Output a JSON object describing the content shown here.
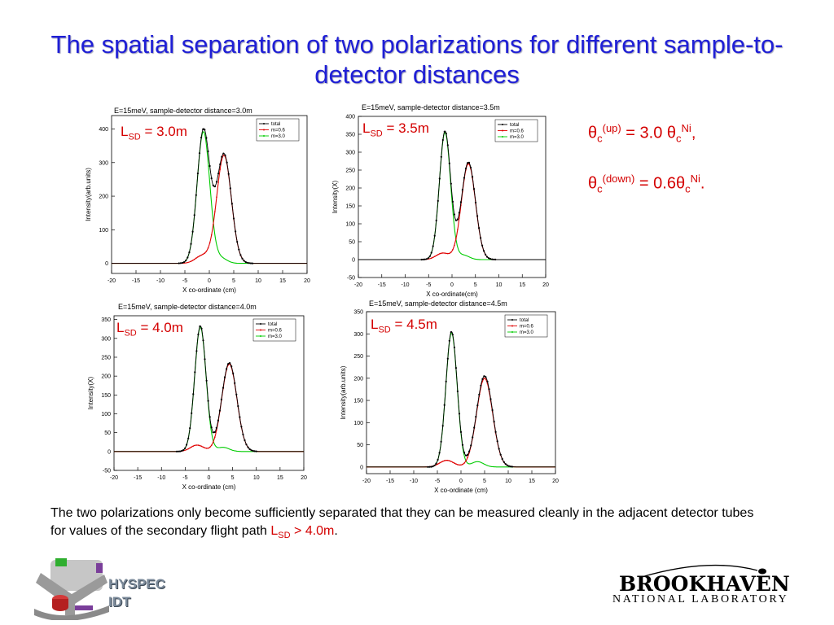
{
  "slide": {
    "title": "The spatial separation of two polarizations for different sample-to-detector distances",
    "theta_up": {
      "prefix": "θ",
      "sub1": "c",
      "sup1": "(up)",
      "mid": " = 3.0 θ",
      "sub2": "c",
      "sup2": "Ni",
      "end": ","
    },
    "theta_down": {
      "prefix": "θ",
      "sub1": "c",
      "sup1": "(down)",
      "mid": " = 0.6θ",
      "sub2": "c",
      "sup2": "Ni",
      "end": "."
    },
    "caption": {
      "text": "The two polarizations only become sufficiently separated that they can be measured cleanly in the adjacent detector tubes for values of the secondary flight path ",
      "lsd_main": "L",
      "lsd_sub": "SD",
      "lsd_rest": " > 4.0m",
      "end": "."
    },
    "logos": {
      "hyspec_line1": "HYSPEC",
      "hyspec_line2": "IDT",
      "bnl_word": "BROOKHAVEN",
      "bnl_sub": "NATIONAL LABORATORY"
    }
  },
  "colors": {
    "title": "#1f1fd6",
    "label": "#d40000",
    "total": "#000000",
    "m06": "#e00000",
    "m30": "#00cc00"
  },
  "chart_data": [
    {
      "type": "line",
      "title": "E=15meV, sample-detector distance=3.0m",
      "lsd": {
        "main": "L",
        "sub": "SD",
        "rest": " = 3.0m"
      },
      "xlabel": "X co-ordinate (cm)",
      "ylabel": "Intensity(arb.units)",
      "xlim": [
        -20,
        20
      ],
      "ylim": [
        -30,
        440
      ],
      "xticks": [
        -20,
        -15,
        -10,
        -5,
        0,
        5,
        10,
        15,
        20
      ],
      "yticks": [
        0,
        100,
        200,
        300,
        400
      ],
      "legend_position": "top-right",
      "series": [
        {
          "name": "total",
          "color": "#000000",
          "components": [
            [
              -1.2,
              1.3,
              395
            ],
            [
              3.0,
              1.5,
              325
            ]
          ]
        },
        {
          "name": "m=0.6",
          "color": "#e00000",
          "components": [
            [
              -1.5,
              1.4,
              22
            ],
            [
              3.0,
              1.5,
              322
            ]
          ]
        },
        {
          "name": "m=3.0",
          "color": "#00cc00",
          "components": [
            [
              -1.2,
              1.3,
              392
            ],
            [
              2.5,
              1.2,
              14
            ]
          ]
        }
      ]
    },
    {
      "type": "line",
      "title": "E=15meV, sample-detector distance=3.5m",
      "lsd": {
        "main": "L",
        "sub": "SD",
        "rest": " = 3.5m"
      },
      "xlabel": "X co-ordinate(cm)",
      "ylabel": "Intensity(X)",
      "xlim": [
        -20,
        20
      ],
      "ylim": [
        -50,
        400
      ],
      "xticks": [
        -20,
        -15,
        -10,
        -5,
        0,
        5,
        10,
        15,
        20
      ],
      "yticks": [
        -50,
        0,
        50,
        100,
        150,
        200,
        250,
        300,
        350,
        400
      ],
      "legend_position": "top-right",
      "series": [
        {
          "name": "total",
          "color": "#000000",
          "components": [
            [
              -1.5,
              1.2,
              358
            ],
            [
              3.5,
              1.5,
              272
            ]
          ]
        },
        {
          "name": "m=0.6",
          "color": "#e00000",
          "components": [
            [
              -2.0,
              1.4,
              18
            ],
            [
              3.5,
              1.5,
              268
            ]
          ]
        },
        {
          "name": "m=3.0",
          "color": "#00cc00",
          "components": [
            [
              -1.5,
              1.2,
              355
            ],
            [
              2.5,
              1.2,
              12
            ]
          ]
        }
      ]
    },
    {
      "type": "line",
      "title": "E=15meV, sample-detector distance=4.0m",
      "lsd": {
        "main": "L",
        "sub": "SD",
        "rest": " = 4.0m"
      },
      "xlabel": "X co-ordinate (cm)",
      "ylabel": "Intensity(X)",
      "xlim": [
        -20,
        20
      ],
      "ylim": [
        -50,
        360
      ],
      "xticks": [
        -20,
        -15,
        -10,
        -5,
        0,
        5,
        10,
        15,
        20
      ],
      "yticks": [
        -50,
        0,
        50,
        100,
        150,
        200,
        250,
        300,
        350
      ],
      "legend_position": "top-right",
      "series": [
        {
          "name": "total",
          "color": "#000000",
          "components": [
            [
              -1.8,
              1.2,
              333
            ],
            [
              4.3,
              1.6,
              235
            ]
          ]
        },
        {
          "name": "m=0.6",
          "color": "#e00000",
          "components": [
            [
              -2.5,
              1.4,
              17
            ],
            [
              4.3,
              1.6,
              232
            ]
          ]
        },
        {
          "name": "m=3.0",
          "color": "#00cc00",
          "components": [
            [
              -1.8,
              1.2,
              330
            ],
            [
              3.0,
              1.3,
              11
            ]
          ]
        }
      ]
    },
    {
      "type": "line",
      "title": "E=15meV, sample-detector distance=4.5m",
      "lsd": {
        "main": "L",
        "sub": "SD",
        "rest": " = 4.5m"
      },
      "xlabel": "X co-ordinate (cm)",
      "ylabel": "Intensity(arb.units)",
      "xlim": [
        -20,
        20
      ],
      "ylim": [
        -15,
        350
      ],
      "xticks": [
        -20,
        -15,
        -10,
        -5,
        0,
        5,
        10,
        15,
        20
      ],
      "yticks": [
        0,
        50,
        100,
        150,
        200,
        250,
        300,
        350
      ],
      "legend_position": "top-right",
      "series": [
        {
          "name": "total",
          "color": "#000000",
          "components": [
            [
              -2.0,
              1.2,
              305
            ],
            [
              5.0,
              1.7,
              205
            ]
          ]
        },
        {
          "name": "m=0.6",
          "color": "#e00000",
          "components": [
            [
              -3.0,
              1.5,
              15
            ],
            [
              5.0,
              1.7,
              200
            ]
          ]
        },
        {
          "name": "m=3.0",
          "color": "#00cc00",
          "components": [
            [
              -2.0,
              1.2,
              302
            ],
            [
              3.5,
              1.3,
              12
            ]
          ]
        }
      ]
    }
  ]
}
